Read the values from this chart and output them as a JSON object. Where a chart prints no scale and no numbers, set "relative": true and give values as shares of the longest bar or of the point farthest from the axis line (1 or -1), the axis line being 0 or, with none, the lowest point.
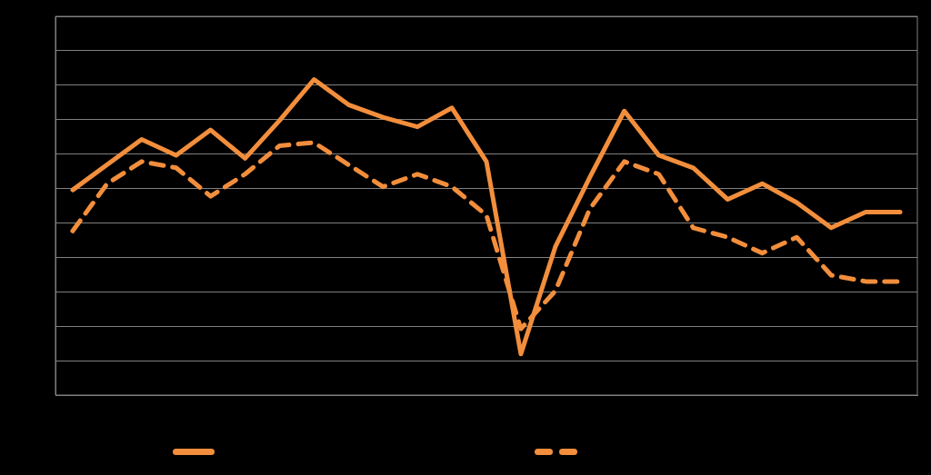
{
  "chart_data": {
    "type": "line",
    "relative": true,
    "grid": "y",
    "marker": "none",
    "categories": [
      null,
      null,
      null,
      null,
      null,
      null,
      null,
      null,
      null,
      null,
      null,
      null,
      null,
      null,
      null,
      null,
      null,
      null,
      null,
      null,
      null,
      null,
      null,
      null,
      null
    ],
    "series": [
      {
        "color": "#f28e3c",
        "line_style": "solid",
        "values": [
          0.65,
          0.73,
          0.81,
          0.76,
          0.84,
          0.75,
          0.87,
          1,
          0.92,
          0.88,
          0.85,
          0.91,
          0.74,
          0.13,
          0.47,
          0.69,
          0.9,
          0.76,
          0.72,
          0.62,
          0.67,
          0.61,
          0.53,
          0.58,
          0.58
        ]
      },
      {
        "color": "#f28e3c",
        "line_style": "dashed",
        "values": [
          0.52,
          0.67,
          0.74,
          0.72,
          0.63,
          0.7,
          0.79,
          0.8,
          0.73,
          0.66,
          0.7,
          0.66,
          0.57,
          0.21,
          0.33,
          0.59,
          0.74,
          0.7,
          0.53,
          0.5,
          0.45,
          0.5,
          0.38,
          0.36,
          0.36
        ]
      }
    ]
  }
}
